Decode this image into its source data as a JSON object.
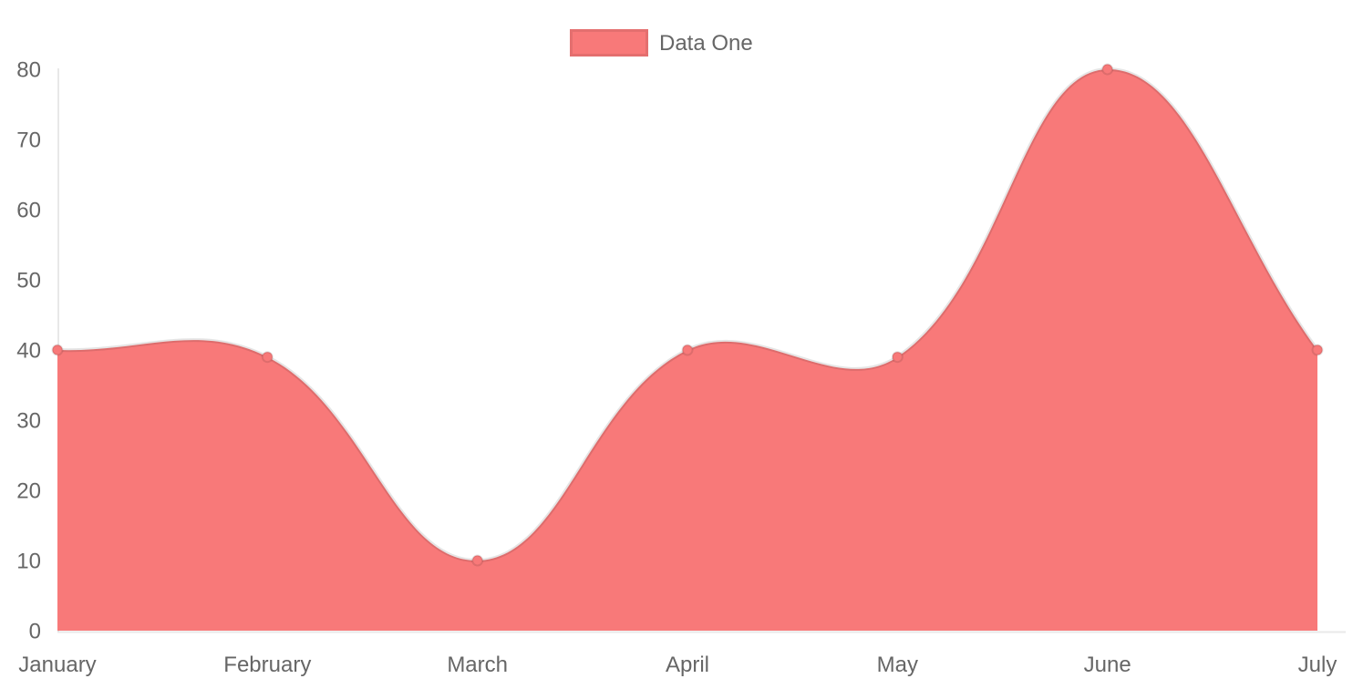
{
  "chart_data": {
    "type": "area",
    "title": "",
    "xlabel": "",
    "ylabel": "",
    "categories": [
      "January",
      "February",
      "March",
      "April",
      "May",
      "June",
      "July"
    ],
    "series": [
      {
        "name": "Data One",
        "values": [
          40,
          39,
          10,
          40,
          39,
          80,
          40
        ]
      }
    ],
    "ylim": [
      0,
      80
    ],
    "y_ticks": [
      0,
      10,
      20,
      30,
      40,
      50,
      60,
      70,
      80
    ],
    "grid": "off",
    "legend_position": "top-center",
    "line_smoothing_tension": 0.4,
    "colors": {
      "fill": "#f87979",
      "line": "rgba(0,0,0,0.1)",
      "point_fill": "#f87979",
      "point_border": "rgba(0,0,0,0.1)",
      "axis_line": "rgba(0,0,0,0.09)",
      "tick_text": "#666666",
      "background": "#ffffff"
    }
  },
  "legend": {
    "items": [
      {
        "label": "Data One",
        "color": "#f87979"
      }
    ]
  }
}
